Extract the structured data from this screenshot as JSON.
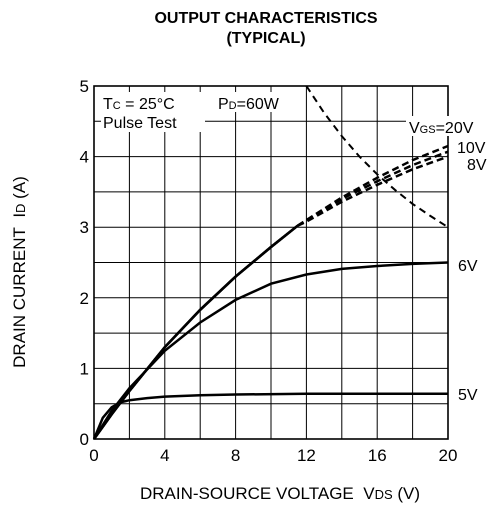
{
  "chart_data": {
    "type": "line",
    "title": "OUTPUT CHARACTERISTICS",
    "subtitle": "(TYPICAL)",
    "xlabel_main": "DRAIN-SOURCE VOLTAGE",
    "xlabel_sym": "V",
    "xlabel_sub": "DS",
    "xlabel_unit": "(V)",
    "ylabel_main": "DRAIN CURRENT",
    "ylabel_sym": "I",
    "ylabel_sub": "D",
    "ylabel_unit": "(A)",
    "xlim": [
      0,
      20
    ],
    "ylim": [
      0,
      5
    ],
    "xticks": [
      0,
      4,
      8,
      12,
      16,
      20
    ],
    "yticks": [
      0,
      1,
      2,
      3,
      4,
      5
    ],
    "grid": true,
    "annotations": {
      "tc_sym": "T",
      "tc_sub": "C",
      "tc_val": " = 25°C",
      "pd_sym": "P",
      "pd_sub": "D",
      "pd_val": "=60W",
      "pulse": "Pulse Test",
      "vgs_sym": "V",
      "vgs_sub": "GS",
      "vgs_val": "=20V"
    },
    "series": [
      {
        "name": "20V",
        "label": "=20V",
        "dash_from": 11.5,
        "x": [
          0,
          1,
          2,
          4,
          6,
          8,
          10,
          11.5,
          12,
          14,
          16,
          18,
          20
        ],
        "y": [
          0,
          0.35,
          0.68,
          1.3,
          1.83,
          2.3,
          2.72,
          3.02,
          3.1,
          3.42,
          3.7,
          3.95,
          4.15
        ]
      },
      {
        "name": "10V",
        "label": "10V",
        "dash_from": 11.5,
        "x": [
          0,
          1,
          2,
          4,
          6,
          8,
          10,
          11.5,
          12,
          14,
          16,
          18,
          20
        ],
        "y": [
          0,
          0.35,
          0.68,
          1.3,
          1.83,
          2.3,
          2.72,
          3.02,
          3.1,
          3.4,
          3.65,
          3.88,
          4.07
        ]
      },
      {
        "name": "8V",
        "label": "8V",
        "dash_from": 11.5,
        "x": [
          0,
          1,
          2,
          4,
          6,
          8,
          10,
          11.5,
          12,
          14,
          16,
          18,
          20
        ],
        "y": [
          0,
          0.35,
          0.68,
          1.3,
          1.83,
          2.3,
          2.72,
          3.02,
          3.08,
          3.36,
          3.6,
          3.82,
          4.0
        ]
      },
      {
        "name": "6V",
        "label": "6V",
        "x": [
          0,
          1,
          2,
          4,
          6,
          8,
          10,
          12,
          14,
          16,
          18,
          20
        ],
        "y": [
          0,
          0.4,
          0.72,
          1.25,
          1.65,
          1.97,
          2.2,
          2.33,
          2.41,
          2.45,
          2.48,
          2.5
        ]
      },
      {
        "name": "5V",
        "label": "5V",
        "x": [
          0,
          0.5,
          1,
          1.5,
          2,
          3,
          4,
          6,
          8,
          12,
          16,
          20
        ],
        "y": [
          0,
          0.3,
          0.45,
          0.52,
          0.55,
          0.58,
          0.6,
          0.62,
          0.63,
          0.64,
          0.64,
          0.64
        ]
      },
      {
        "name": "PD=60W",
        "style": "dashed",
        "x": [
          12,
          13,
          14,
          15,
          16,
          17,
          18,
          19,
          20
        ],
        "y": [
          5,
          4.62,
          4.29,
          4.0,
          3.75,
          3.53,
          3.33,
          3.16,
          3.0
        ]
      }
    ]
  }
}
